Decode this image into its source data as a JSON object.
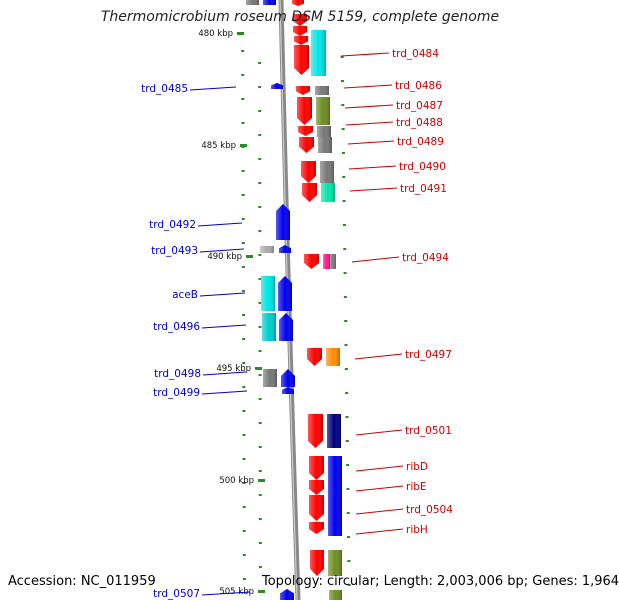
{
  "title": "Thermomicrobium roseum DSM 5159, complete genome",
  "footer": {
    "accession": "Accession: NC_011959",
    "summary": "Topology: circular; Length: 2,003,006 bp; Genes: 1,964"
  },
  "colors": {
    "left_label": "#0000cc",
    "right_label": "#cc0000",
    "scale_tick": "#2a8a2a",
    "backbone": "#888888"
  },
  "scale_labels": [
    {
      "kbp": 480,
      "text": "480 kbp"
    },
    {
      "kbp": 485,
      "text": "485 kbp"
    },
    {
      "kbp": 490,
      "text": "490 kbp"
    },
    {
      "kbp": 495,
      "text": "495 kbp"
    },
    {
      "kbp": 500,
      "text": "500 kbp"
    },
    {
      "kbp": 505,
      "text": "505 kbp"
    }
  ],
  "right_labels": [
    "trd_0484",
    "trd_0486",
    "trd_0487",
    "trd_0488",
    "trd_0489",
    "trd_0490",
    "trd_0491",
    "trd_0494",
    "trd_0497",
    "trd_0501",
    "ribD",
    "ribE",
    "trd_0504",
    "ribH"
  ],
  "left_labels": [
    "trd_0485",
    "trd_0492",
    "trd_0493",
    "aceB",
    "trd_0496",
    "trd_0498",
    "trd_0499",
    "trd_0507"
  ]
}
